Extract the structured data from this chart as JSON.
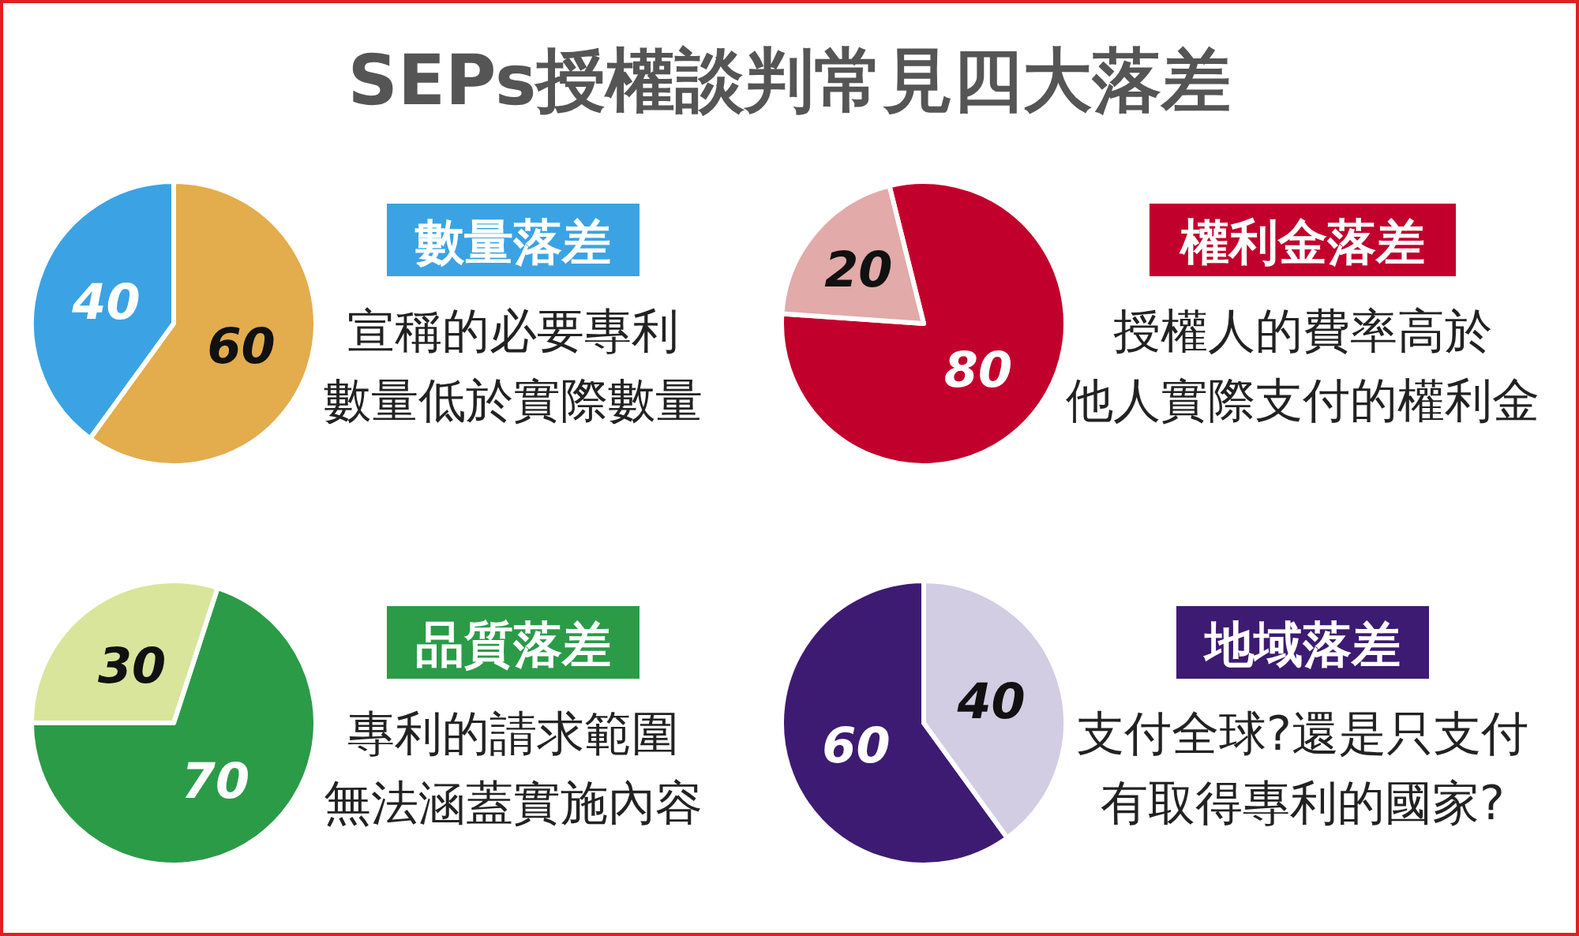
{
  "chart_data": [
    {
      "type": "other",
      "title": "SEPs授權談判常見四大落差"
    },
    {
      "type": "pie",
      "title": "數量落差",
      "annotations": [
        "宣稱的必要專利",
        "數量低於實際數量"
      ],
      "categories": [
        null,
        null
      ],
      "values": [
        40,
        60
      ],
      "colors": [
        "#3ba3e3",
        "#e3ac4c"
      ],
      "data_labels": true
    },
    {
      "type": "pie",
      "title": "權利金落差",
      "annotations": [
        "授權人的費率高於",
        "他人實際支付的權利金"
      ],
      "categories": [
        null,
        null
      ],
      "values": [
        80,
        20
      ],
      "colors": [
        "#c2002c",
        "#e2aaa8"
      ],
      "data_labels": true
    },
    {
      "type": "pie",
      "title": "品質落差",
      "annotations": [
        "專利的請求範圍",
        "無法涵蓋實施內容"
      ],
      "categories": [
        null,
        null
      ],
      "values": [
        70,
        30
      ],
      "colors": [
        "#2b9b48",
        "#d9e59b"
      ],
      "data_labels": true
    },
    {
      "type": "pie",
      "title": "地域落差",
      "annotations": [
        "支付全球?還是只支付",
        "有取得專利的國家?"
      ],
      "categories": [
        null,
        null
      ],
      "values": [
        60,
        40
      ],
      "colors": [
        "#3d1b72",
        "#d2cde2"
      ],
      "data_labels": true
    }
  ]
}
